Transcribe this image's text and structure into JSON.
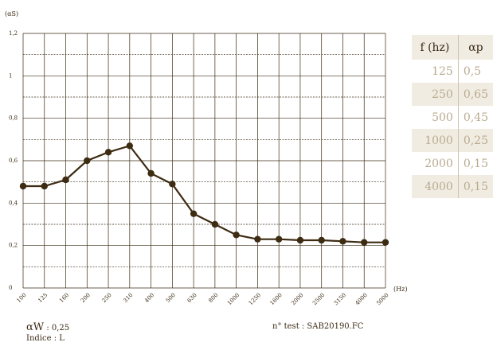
{
  "chart_data": {
    "type": "line",
    "ylabel": "(αS)",
    "xlabel": "(Hz)",
    "categories": [
      "100",
      "125",
      "160",
      "200",
      "250",
      "310",
      "400",
      "500",
      "630",
      "800",
      "1000",
      "1250",
      "1600",
      "2000",
      "2500",
      "3150",
      "4000",
      "5000"
    ],
    "values": [
      0.48,
      0.48,
      0.51,
      0.6,
      0.64,
      0.67,
      0.54,
      0.49,
      0.35,
      0.3,
      0.25,
      0.23,
      0.23,
      0.225,
      0.225,
      0.22,
      0.215,
      0.215
    ],
    "ylim": [
      0,
      1.2
    ],
    "yticks": [
      "0",
      "0,2",
      "0,4",
      "0,6",
      "0,8",
      "1",
      "1,2"
    ],
    "line_color": "#3d2b12",
    "grid": true
  },
  "table": {
    "headers": [
      "f (hz)",
      "αp"
    ],
    "rows": [
      [
        "125",
        "0,5"
      ],
      [
        "250",
        "0,65"
      ],
      [
        "500",
        "0,45"
      ],
      [
        "1000",
        "0,25"
      ],
      [
        "2000",
        "0,15"
      ],
      [
        "4000",
        "0,15"
      ]
    ]
  },
  "footer": {
    "aw_symbol": "αW",
    "aw_value": " : 0,25",
    "indice": "Indice : L",
    "test": "n° test : SAB20190.FC"
  }
}
